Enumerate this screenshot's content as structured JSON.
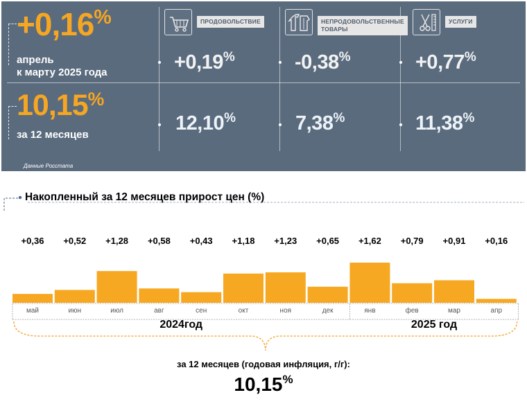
{
  "summary": {
    "monthly": {
      "value": "+0,16",
      "unit": "%",
      "line1": "апрель",
      "line2": "к марту 2025 года"
    },
    "annual": {
      "value": "10,15",
      "unit": "%",
      "label": "за 12 месяцев"
    },
    "categories": [
      {
        "label_line1": "ПРОДОВОЛЬСТВИЕ",
        "label_line2": "",
        "icon": "shopping-cart-icon",
        "monthly": "+0,19",
        "annual": "12,10"
      },
      {
        "label_line1": "НЕПРОДОВОЛЬСТВЕННЫЕ",
        "label_line2": "ТОВАРЫ",
        "icon": "clothes-icon",
        "monthly": "-0,38",
        "annual": "7,38"
      },
      {
        "label_line1": "УСЛУГИ",
        "label_line2": "",
        "icon": "scissors-comb-icon",
        "monthly": "+0,77",
        "annual": "11,38"
      }
    ],
    "unit": "%",
    "source": "Данные Росстата"
  },
  "colors": {
    "panel": "#5a6b7e",
    "accent": "#f5a623",
    "bar": "#f7a823",
    "text": "#000000"
  },
  "chart_data": {
    "type": "bar",
    "title": "Накопленный за 12 месяцев прирост цен (%)",
    "categories": [
      "май",
      "июн",
      "июл",
      "авг",
      "сен",
      "окт",
      "ноя",
      "дек",
      "янв",
      "фев",
      "мар",
      "апр"
    ],
    "values": [
      0.36,
      0.52,
      1.28,
      0.58,
      0.43,
      1.18,
      1.23,
      0.65,
      1.62,
      0.79,
      0.91,
      0.16
    ],
    "value_labels": [
      "+0,36",
      "+0,52",
      "+1,28",
      "+0,58",
      "+0,43",
      "+1,18",
      "+1,23",
      "+0,65",
      "+1,62",
      "+0,79",
      "+0,91",
      "+0,16"
    ],
    "groups": [
      {
        "label": "2024год",
        "count": 8
      },
      {
        "label": "2025 год",
        "count": 4
      }
    ],
    "ylim": [
      0,
      1.62
    ],
    "grid": false,
    "legend": "none"
  },
  "footer": {
    "caption": "за 12 месяцев (годовая инфляция, г/г):",
    "value": "10,15",
    "unit": "%"
  }
}
